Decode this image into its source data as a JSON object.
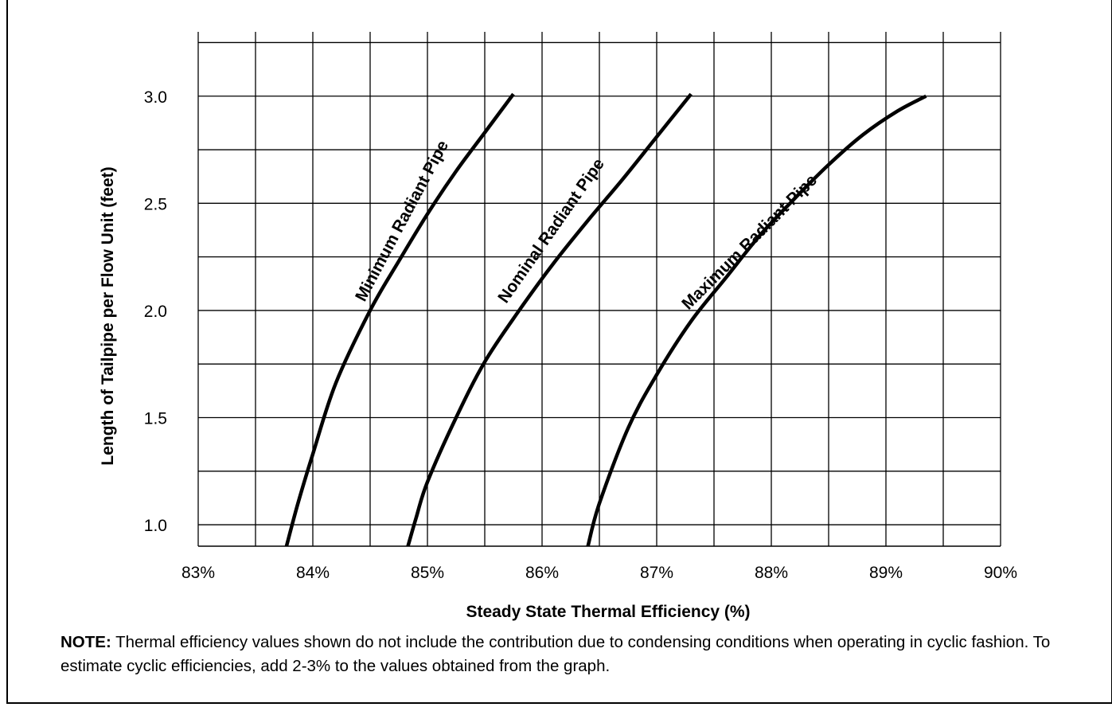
{
  "chart_data": {
    "type": "line",
    "xlabel": "Steady State Thermal Efficiency (%)",
    "ylabel": "Length of Tailpipe per Flow Unit (feet)",
    "xlim": [
      83,
      90
    ],
    "ylim": [
      0.9,
      3.3
    ],
    "x_ticks": [
      83,
      84,
      85,
      86,
      87,
      88,
      89,
      90
    ],
    "x_tick_labels": [
      "83%",
      "84%",
      "85%",
      "86%",
      "87%",
      "88%",
      "89%",
      "90%"
    ],
    "y_ticks": [
      1.0,
      1.5,
      2.0,
      2.5,
      3.0
    ],
    "y_tick_labels": [
      "1.0",
      "1.5",
      "2.0",
      "2.5",
      "3.0"
    ],
    "x_grid_step": 0.5,
    "y_grid_step": 0.25,
    "grid": true,
    "series": [
      {
        "name": "Minimum Radiant Pipe",
        "x": [
          83.77,
          83.87,
          84.0,
          84.2,
          84.5,
          84.75,
          85.0,
          85.25,
          85.5,
          85.75
        ],
        "y": [
          0.9,
          1.1,
          1.33,
          1.66,
          2.0,
          2.23,
          2.45,
          2.65,
          2.83,
          3.01
        ]
      },
      {
        "name": "Nominal Radiant Pipe",
        "x": [
          84.83,
          84.9,
          85.0,
          85.25,
          85.5,
          85.8,
          86.1,
          86.4,
          86.7,
          87.0,
          87.3
        ],
        "y": [
          0.9,
          1.03,
          1.2,
          1.5,
          1.76,
          2.0,
          2.22,
          2.42,
          2.61,
          2.81,
          3.01
        ]
      },
      {
        "name": "Maximum Radiant Pipe",
        "x": [
          86.4,
          86.5,
          86.75,
          87.0,
          87.3,
          87.6,
          87.9,
          88.2,
          88.5,
          88.8,
          89.1,
          89.35
        ],
        "y": [
          0.9,
          1.1,
          1.45,
          1.7,
          1.95,
          2.15,
          2.35,
          2.52,
          2.68,
          2.82,
          2.93,
          3.0
        ]
      }
    ]
  },
  "note": {
    "label": "NOTE:",
    "text": " Thermal efficiency values shown do not include the contribution due to condensing conditions when operating in cyclic fashion. To estimate cyclic efficiencies, add 2-3% to the values obtained from the graph."
  },
  "colors": {
    "line": "#000000",
    "grid": "#000000",
    "background": "#ffffff"
  }
}
